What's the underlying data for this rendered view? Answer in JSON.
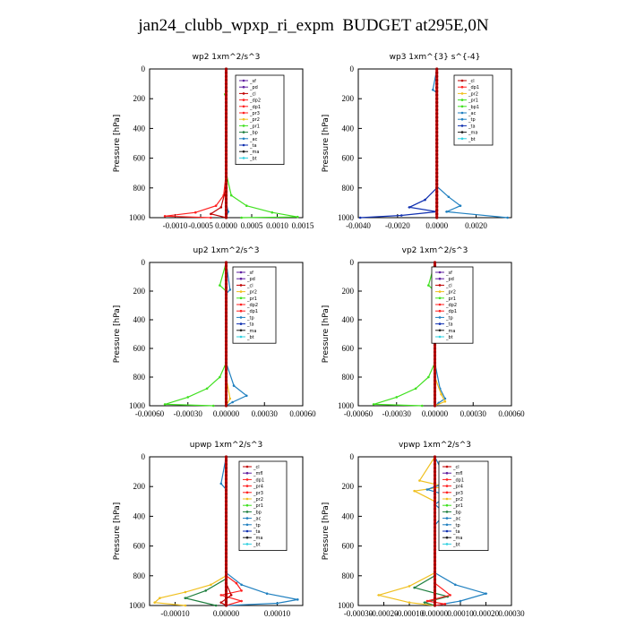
{
  "page": {
    "title": "jan24_clubb_wpxp_ri_expm  BUDGET at295E,0N"
  },
  "chart_data": [
    {
      "type": "line",
      "title": "wp2   1xm^2/s^3",
      "ylabel": "Pressure  [hPa]",
      "ylim": [
        1000,
        0
      ],
      "yticks": [
        0,
        200,
        400,
        600,
        800,
        1000
      ],
      "xlim": [
        -0.0015,
        0.0015
      ],
      "xticks": [
        -0.001,
        -0.0005,
        0.0,
        0.0005,
        0.001,
        0.0015
      ],
      "xtick_labels": [
        "-0.0010",
        "-0.0005",
        "0.0000",
        "0.0005",
        "0.0010",
        "0.0015"
      ],
      "legend_entries": [
        "_sf",
        "_pd",
        "_cl",
        "_dp2",
        "_dp1",
        "_pr3",
        "_pr2",
        "_pr1",
        "_bp",
        "_ac",
        "_ta",
        "_ma",
        "_bt"
      ],
      "series": [
        {
          "name": "_dp1",
          "color": "#ff2020",
          "points": [
            [
              0.0,
              0
            ],
            [
              0.0,
              700
            ],
            [
              -5e-05,
              850
            ],
            [
              -0.0002,
              920
            ],
            [
              -0.0006,
              965
            ],
            [
              -0.0012,
              990
            ],
            [
              -0.0003,
              1000
            ]
          ]
        },
        {
          "name": "_pr1",
          "color": "#40e020",
          "points": [
            [
              0.0,
              0
            ],
            [
              1e-05,
              150
            ],
            [
              -2e-05,
              170
            ],
            [
              0.0,
              300
            ],
            [
              0.0,
              700
            ],
            [
              0.0001,
              850
            ],
            [
              0.0004,
              920
            ],
            [
              0.0009,
              965
            ],
            [
              0.0014,
              995
            ],
            [
              0.0003,
              1000
            ]
          ]
        },
        {
          "name": "_cl",
          "color": "#c00000",
          "points": [
            [
              0.0,
              0
            ],
            [
              0.0,
              800
            ],
            [
              -0.0001,
              930
            ],
            [
              -0.0003,
              975
            ],
            [
              0.0,
              1000
            ]
          ]
        },
        {
          "name": "_ac",
          "color": "#2080c0",
          "points": [
            [
              0.0,
              0
            ],
            [
              0.0,
              900
            ],
            [
              4e-05,
              960
            ],
            [
              0.0,
              1000
            ]
          ]
        },
        {
          "name": "_pd",
          "color": "#6020a0",
          "points": [
            [
              0.0,
              0
            ],
            [
              0.0,
              1000
            ]
          ]
        }
      ]
    },
    {
      "type": "line",
      "title": "wp3   1xm^{3} s^{-4}",
      "ylabel": "Pressure  [hPa]",
      "ylim": [
        1000,
        0
      ],
      "yticks": [
        0,
        200,
        400,
        600,
        800,
        1000
      ],
      "xlim": [
        -0.004,
        0.0038
      ],
      "xticks": [
        -0.004,
        -0.002,
        0.0,
        0.002
      ],
      "xtick_labels": [
        "-0.0040",
        "-0.0020",
        "0.0000",
        "0.0020"
      ],
      "legend_entries": [
        "_cl",
        "_dp1",
        "_pr2",
        "_pr1",
        "_bp1",
        "_ac",
        "_tp",
        "_ta",
        "_ma",
        "_bt"
      ],
      "series": [
        {
          "name": "_tp",
          "color": "#1030b0",
          "points": [
            [
              0.0,
              0
            ],
            [
              0.0,
              800
            ],
            [
              -0.0006,
              880
            ],
            [
              -0.0014,
              930
            ],
            [
              0.0,
              960
            ],
            [
              -0.0018,
              985
            ],
            [
              -0.0039,
              1000
            ]
          ]
        },
        {
          "name": "_ac",
          "color": "#2080c0",
          "points": [
            [
              0.0,
              0
            ],
            [
              -0.0002,
              140
            ],
            [
              0.0,
              160
            ],
            [
              0.0,
              790
            ],
            [
              0.0006,
              860
            ],
            [
              0.0012,
              920
            ],
            [
              0.0005,
              960
            ],
            [
              0.0036,
              1000
            ]
          ]
        },
        {
          "name": "_dp1",
          "color": "#ff2020",
          "points": [
            [
              0.0,
              0
            ],
            [
              0.0,
              1000
            ]
          ]
        }
      ]
    },
    {
      "type": "line",
      "title": "up2   1xm^2/s^3",
      "ylabel": "Pressure  [hPa]",
      "ylim": [
        1000,
        0
      ],
      "yticks": [
        0,
        200,
        400,
        600,
        800,
        1000
      ],
      "xlim": [
        -0.0006,
        0.0006
      ],
      "xticks": [
        -0.0006,
        -0.0003,
        0.0,
        0.0003,
        0.0006
      ],
      "xtick_labels": [
        "-0.00060",
        "-0.00030",
        "0.00000",
        "0.00030",
        "0.00060"
      ],
      "legend_entries": [
        "_sf",
        "_pd",
        "_cl",
        "_pr2",
        "_pr1",
        "_dp2",
        "_dp1",
        "_tp",
        "_ta",
        "_ma",
        "_bt"
      ],
      "series": [
        {
          "name": "_dp1",
          "color": "#40e020",
          "points": [
            [
              0.0,
              0
            ],
            [
              -5e-05,
              160
            ],
            [
              0.0,
              200
            ],
            [
              0.0,
              700
            ],
            [
              -5e-05,
              800
            ],
            [
              -0.00015,
              880
            ],
            [
              -0.0003,
              940
            ],
            [
              -0.00048,
              990
            ],
            [
              -0.0001,
              1000
            ]
          ]
        },
        {
          "name": "_tp",
          "color": "#2080c0",
          "points": [
            [
              0.0,
              0
            ],
            [
              3e-05,
              190
            ],
            [
              0.0,
              220
            ],
            [
              0.0,
              700
            ],
            [
              6e-05,
              860
            ],
            [
              0.00016,
              930
            ],
            [
              5e-05,
              975
            ],
            [
              0.0,
              1000
            ]
          ]
        },
        {
          "name": "_pr1",
          "color": "#f0c020",
          "points": [
            [
              0.0,
              0
            ],
            [
              0.0,
              800
            ],
            [
              3e-05,
              950
            ],
            [
              0.0,
              1000
            ]
          ]
        },
        {
          "name": "_pd",
          "color": "#c00000",
          "points": [
            [
              0.0,
              0
            ],
            [
              0.0,
              1000
            ]
          ]
        }
      ]
    },
    {
      "type": "line",
      "title": "vp2   1xm^2/s^3",
      "ylabel": "Pressure  [hPa]",
      "ylim": [
        1000,
        0
      ],
      "yticks": [
        0,
        200,
        400,
        600,
        800,
        1000
      ],
      "xlim": [
        -0.0006,
        0.0006
      ],
      "xticks": [
        -0.0006,
        -0.0003,
        0.0,
        0.0003,
        0.0006
      ],
      "xtick_labels": [
        "-0.00060",
        "-0.00030",
        "0.00000",
        "0.00030",
        "0.00060"
      ],
      "legend_entries": [
        "_sf",
        "_pd",
        "_cl",
        "_pr2",
        "_pr1",
        "_dp2",
        "_dp1",
        "_tp",
        "_ta",
        "_ma",
        "_bt"
      ],
      "series": [
        {
          "name": "_dp1",
          "color": "#40e020",
          "points": [
            [
              0.0,
              0
            ],
            [
              -5e-05,
              160
            ],
            [
              0.0,
              200
            ],
            [
              0.0,
              700
            ],
            [
              -5e-05,
              800
            ],
            [
              -0.00015,
              880
            ],
            [
              -0.0003,
              940
            ],
            [
              -0.00048,
              990
            ],
            [
              -0.0001,
              1000
            ]
          ]
        },
        {
          "name": "_tp",
          "color": "#2080c0",
          "points": [
            [
              0.0,
              0
            ],
            [
              3e-05,
              190
            ],
            [
              0.0,
              220
            ],
            [
              0.0,
              700
            ],
            [
              4e-05,
              880
            ],
            [
              8e-05,
              950
            ],
            [
              3e-05,
              980
            ],
            [
              0.0,
              1000
            ]
          ]
        },
        {
          "name": "_pr1",
          "color": "#f0c020",
          "points": [
            [
              0.0,
              0
            ],
            [
              0.0,
              800
            ],
            [
              5e-05,
              920
            ],
            [
              8e-05,
              970
            ],
            [
              0.0,
              1000
            ]
          ]
        },
        {
          "name": "_pd",
          "color": "#c00000",
          "points": [
            [
              0.0,
              0
            ],
            [
              0.0,
              1000
            ]
          ]
        }
      ]
    },
    {
      "type": "line",
      "title": "upwp   1xm^2/s^3",
      "ylabel": "Pressure  [hPa]",
      "ylim": [
        1000,
        0
      ],
      "yticks": [
        0,
        200,
        400,
        600,
        800,
        1000
      ],
      "xlim": [
        -0.00015,
        0.00015
      ],
      "xticks": [
        -0.0001,
        0.0,
        0.0001
      ],
      "xtick_labels": [
        "-0.00010",
        "0.00000",
        "0.00010"
      ],
      "legend_entries": [
        "_cl",
        "_mfl",
        "_dp1",
        "_pr4",
        "_pr3",
        "_pr2",
        "_pr1",
        "_bp",
        "_ac",
        "_tp",
        "_ta",
        "_ma",
        "_bt"
      ],
      "series": [
        {
          "name": "_ac",
          "color": "#2080c0",
          "points": [
            [
              0.0,
              0
            ],
            [
              -1e-05,
              180
            ],
            [
              0.0,
              220
            ],
            [
              0.0,
              780
            ],
            [
              3e-05,
              860
            ],
            [
              8e-05,
              920
            ],
            [
              0.00014,
              960
            ],
            [
              0.0001,
              985
            ],
            [
              0.0,
              1000
            ]
          ]
        },
        {
          "name": "_pr1",
          "color": "#f0c020",
          "points": [
            [
              0.0,
              0
            ],
            [
              0.0,
              800
            ],
            [
              -3e-05,
              860
            ],
            [
              -8e-05,
              910
            ],
            [
              -0.00013,
              950
            ],
            [
              -0.00014,
              980
            ],
            [
              -8e-05,
              1000
            ]
          ]
        },
        {
          "name": "_bp",
          "color": "#208040",
          "points": [
            [
              0.0,
              0
            ],
            [
              0.0,
              820
            ],
            [
              -4e-05,
              900
            ],
            [
              -8e-05,
              950
            ],
            [
              -2e-05,
              1000
            ]
          ]
        },
        {
          "name": "_pr3",
          "color": "#ff2020",
          "points": [
            [
              0.0,
              0
            ],
            [
              0.0,
              800
            ],
            [
              2e-05,
              850
            ],
            [
              3e-05,
              900
            ],
            [
              -1e-05,
              930
            ],
            [
              3e-05,
              970
            ],
            [
              0.0,
              1000
            ]
          ]
        },
        {
          "name": "_dp1",
          "color": "#c00000",
          "points": [
            [
              0.0,
              0
            ],
            [
              0.0,
              850
            ],
            [
              1e-05,
              930
            ],
            [
              -1e-05,
              980
            ],
            [
              0.0,
              1000
            ]
          ]
        },
        {
          "name": "_mfl",
          "color": "#6020a0",
          "points": [
            [
              0.0,
              0
            ],
            [
              0.0,
              1000
            ]
          ]
        }
      ]
    },
    {
      "type": "line",
      "title": "vpwp   1xm^2/s^3",
      "ylabel": "Pressure  [hPa]",
      "ylim": [
        1000,
        0
      ],
      "yticks": [
        0,
        200,
        400,
        600,
        800,
        1000
      ],
      "xlim": [
        -0.0003,
        0.0003
      ],
      "xticks": [
        -0.0003,
        -0.0002,
        -0.0001,
        0.0,
        0.0001,
        0.0002,
        0.0003
      ],
      "xtick_labels": [
        "-0.00030",
        "-0.00020",
        "-0.00010",
        "0.00000",
        "0.00010",
        "0.00020",
        "0.00030"
      ],
      "legend_entries": [
        "_cl",
        "_mfl",
        "_dp1",
        "_pr4",
        "_pr3",
        "_pr2",
        "_pr1",
        "_bp",
        "_ac",
        "_tp",
        "_ta",
        "_ma",
        "_bt"
      ],
      "series": [
        {
          "name": "_pr2",
          "color": "#f0c020",
          "points": [
            [
              0.0,
              0
            ],
            [
              -6e-05,
              160
            ],
            [
              4e-05,
              200
            ],
            [
              -8e-05,
              230
            ],
            [
              0.0,
              300
            ],
            [
              0.0,
              780
            ],
            [
              -0.0001,
              870
            ],
            [
              -0.00022,
              930
            ],
            [
              -0.0001,
              980
            ],
            [
              0.0,
              1000
            ]
          ]
        },
        {
          "name": "_ac",
          "color": "#2080c0",
          "points": [
            [
              0.0,
              0
            ],
            [
              5e-05,
              170
            ],
            [
              -3e-05,
              220
            ],
            [
              5e-05,
              260
            ],
            [
              0.0,
              320
            ],
            [
              4e-05,
              380
            ],
            [
              0.0,
              460
            ],
            [
              0.0,
              780
            ],
            [
              8e-05,
              860
            ],
            [
              0.0002,
              920
            ],
            [
              0.0001,
              970
            ],
            [
              0.0,
              1000
            ]
          ]
        },
        {
          "name": "_bp",
          "color": "#208040",
          "points": [
            [
              0.0,
              0
            ],
            [
              0.0,
              800
            ],
            [
              -8e-05,
              880
            ],
            [
              5e-05,
              940
            ],
            [
              -4e-05,
              980
            ],
            [
              0.0,
              1000
            ]
          ]
        },
        {
          "name": "_pr3",
          "color": "#ff2020",
          "points": [
            [
              0.0,
              0
            ],
            [
              0.0,
              850
            ],
            [
              6e-05,
              930
            ],
            [
              -3e-05,
              970
            ],
            [
              4e-05,
              990
            ],
            [
              0.0,
              1000
            ]
          ]
        },
        {
          "name": "_mfl",
          "color": "#6020a0",
          "points": [
            [
              0.0,
              0
            ],
            [
              0.0,
              1000
            ]
          ]
        }
      ]
    }
  ]
}
